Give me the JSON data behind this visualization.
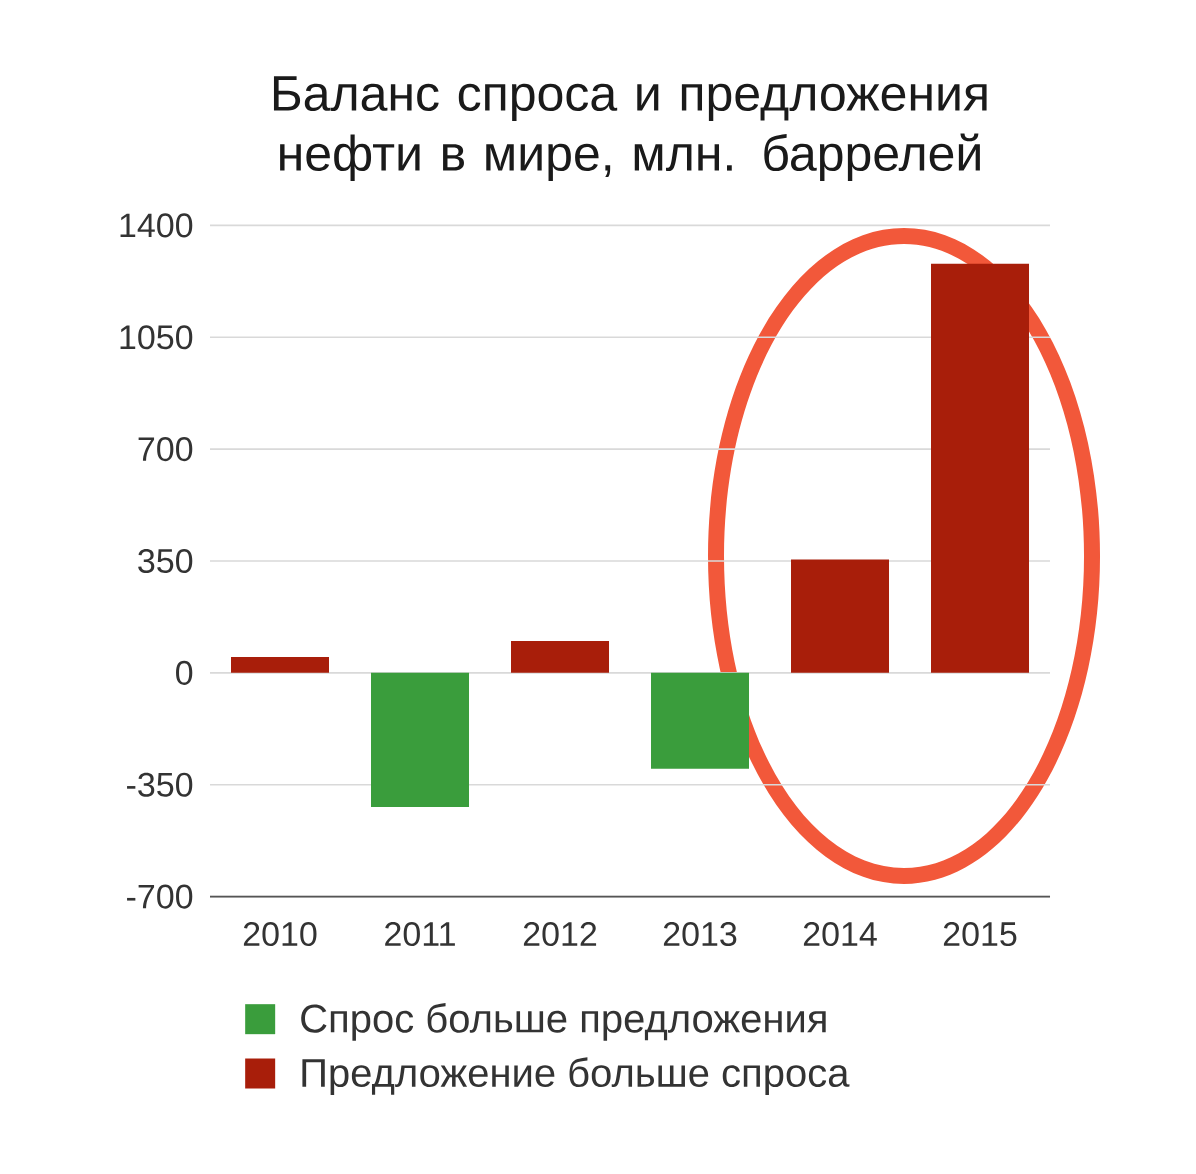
{
  "chart_data": {
    "type": "bar",
    "title": "Баланс спроса и предложения нефти в мире, млн. баррелей",
    "categories": [
      "2010",
      "2011",
      "2012",
      "2013",
      "2014",
      "2015"
    ],
    "series": [
      {
        "name": "Спрос больше предложения",
        "color": "#3a9d3c",
        "values": [
          null,
          -420,
          null,
          -300,
          null,
          null
        ]
      },
      {
        "name": "Предложение больше спроса",
        "color": "#a81e0a",
        "values": [
          50,
          null,
          100,
          null,
          355,
          1280
        ]
      }
    ],
    "ylim": [
      -700,
      1400
    ],
    "yticks": [
      -700,
      -350,
      0,
      350,
      700,
      1050,
      1400
    ],
    "grid": "y",
    "legend": "bottom"
  }
}
